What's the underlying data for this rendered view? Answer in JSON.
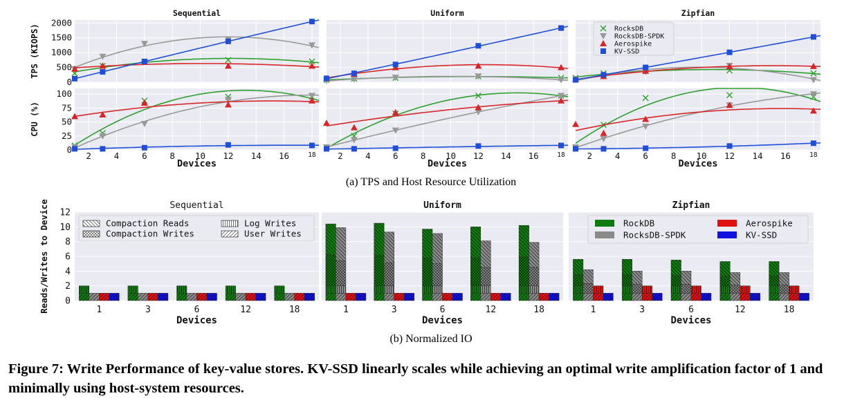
{
  "figure": {
    "subcaption_a": "(a)  TPS and Host Resource Utilization",
    "subcaption_b": "(b)  Normalized IO",
    "caption": "Figure 7: Write Performance of key-value stores. KV-SSD linearly scales while achieving an optimal write amplification factor of 1 and minimally using host-system resources."
  },
  "chart_data": [
    {
      "type": "scatter",
      "panel": "tps",
      "ylabel": "TPS (KIOPS)",
      "ylim": [
        0,
        2100
      ],
      "yticks": [
        0,
        500,
        1000,
        1500,
        2000
      ],
      "x": [
        1,
        3,
        6,
        12,
        18
      ],
      "xlim": [
        1,
        18.5
      ],
      "grid": true,
      "legend": {
        "placement": "top-left",
        "subplot": "Zipfian"
      },
      "titles": [
        "Sequential",
        "Uniform",
        "Zipfian"
      ],
      "series_names": [
        "RocksDB",
        "RocksDB-SPDK",
        "Aerospike",
        "KV-SSD"
      ],
      "colors": [
        "#2ca02c",
        "#999999",
        "#d62728",
        "#1f4fd8"
      ],
      "markers": [
        "x",
        "v",
        "^",
        "s"
      ],
      "subplots": [
        {
          "title": "Sequential",
          "series": [
            {
              "values": [
                300,
                550,
                700,
                750,
                700
              ]
            },
            {
              "values": [
                450,
                870,
                1300,
                1450,
                1250
              ]
            },
            {
              "values": [
                450,
                550,
                680,
                550,
                550
              ]
            },
            {
              "values": [
                120,
                350,
                700,
                1380,
                2050
              ]
            }
          ]
        },
        {
          "title": "Uniform",
          "series": [
            {
              "values": [
                80,
                120,
                150,
                200,
                150
              ]
            },
            {
              "values": [
                50,
                100,
                160,
                200,
                80
              ]
            },
            {
              "values": [
                130,
                280,
                500,
                550,
                500
              ]
            },
            {
              "values": [
                130,
                300,
                600,
                1230,
                1830
              ]
            }
          ]
        },
        {
          "title": "Zipfian",
          "series": [
            {
              "values": [
                150,
                300,
                380,
                400,
                300
              ]
            },
            {
              "values": [
                100,
                200,
                350,
                560,
                80
              ]
            },
            {
              "values": [
                100,
                200,
                380,
                530,
                540
              ]
            },
            {
              "values": [
                80,
                250,
                500,
                1010,
                1530
              ]
            }
          ]
        }
      ]
    },
    {
      "type": "scatter",
      "panel": "cpu",
      "ylabel": "CPU (%)",
      "xlabel": "Devices",
      "ylim": [
        0,
        110
      ],
      "yticks": [
        0,
        25,
        50,
        75,
        100
      ],
      "xticks": [
        2,
        4,
        6,
        8,
        10,
        12,
        14,
        16,
        18
      ],
      "x": [
        1,
        3,
        6,
        12,
        18
      ],
      "xlim": [
        1,
        18.5
      ],
      "grid": true,
      "series_names": [
        "RocksDB",
        "RocksDB-SPDK",
        "Aerospike",
        "KV-SSD"
      ],
      "subplots": [
        {
          "title": "Sequential",
          "series": [
            {
              "values": [
                8,
                30,
                88,
                95,
                95
              ]
            },
            {
              "values": [
                5,
                25,
                47,
                90,
                97
              ]
            },
            {
              "values": [
                60,
                63,
                84,
                81,
                88
              ]
            },
            {
              "values": [
                2,
                2,
                4,
                9,
                8
              ]
            }
          ]
        },
        {
          "title": "Uniform",
          "series": [
            {
              "values": [
                5,
                25,
                65,
                97,
                97
              ]
            },
            {
              "values": [
                5,
                18,
                35,
                68,
                97
              ]
            },
            {
              "values": [
                48,
                40,
                67,
                76,
                88
              ]
            },
            {
              "values": [
                2,
                2,
                3,
                7,
                8
              ]
            }
          ]
        },
        {
          "title": "Zipfian",
          "series": [
            {
              "values": [
                5,
                45,
                93,
                98,
                95
              ]
            },
            {
              "values": [
                5,
                20,
                42,
                80,
                100
              ]
            },
            {
              "values": [
                46,
                30,
                55,
                80,
                70
              ]
            },
            {
              "values": [
                2,
                2,
                3,
                7,
                12
              ]
            }
          ]
        }
      ]
    },
    {
      "type": "bar",
      "panel": "io",
      "ylabel": "Reads/Writes to Device",
      "xlabel": "Devices",
      "ylim": [
        0,
        12
      ],
      "yticks": [
        0,
        2,
        4,
        6,
        8,
        10,
        12
      ],
      "categories": [
        "1",
        "3",
        "6",
        "12",
        "18"
      ],
      "titles": [
        "Sequential",
        "Uniform",
        "Zipfian"
      ],
      "component_names": [
        "Compaction Reads",
        "Compaction Writes",
        "Log Writes",
        "User Writes"
      ],
      "store_names": [
        "RockDB",
        "RocksDB-SPDK",
        "Aerospike",
        "KV-SSD"
      ],
      "store_colors": [
        "#0f7a0f",
        "#8a8a8a",
        "#e01010",
        "#1010e0"
      ],
      "subplots": [
        {
          "title": "Sequential",
          "stores": [
            [
              [
                0,
                0,
                0,
                0,
                0
              ],
              [
                0,
                0,
                0,
                0,
                0
              ],
              [
                1,
                1,
                1,
                1,
                1
              ],
              [
                1,
                1,
                1,
                1,
                1
              ]
            ],
            [
              [
                0,
                0,
                0,
                0,
                0
              ],
              [
                0,
                0,
                0,
                0,
                0
              ],
              [
                0,
                0,
                0,
                0,
                0
              ],
              [
                1,
                1,
                1,
                1,
                1
              ]
            ],
            [
              [
                0,
                0,
                0,
                0,
                0
              ],
              [
                0,
                0,
                0,
                0,
                0
              ],
              [
                0,
                0,
                0,
                0,
                0
              ],
              [
                1,
                1,
                1,
                1,
                1
              ]
            ],
            [
              [
                0,
                0,
                0,
                0,
                0
              ],
              [
                0,
                0,
                0,
                0,
                0
              ],
              [
                0,
                0,
                0,
                0,
                0
              ],
              [
                1,
                1,
                1,
                1,
                1
              ]
            ]
          ]
        },
        {
          "title": "Uniform",
          "stores": [
            [
              [
                4.2,
                4.4,
                3.9,
                4.2,
                4.3
              ],
              [
                4.2,
                4.1,
                3.8,
                3.8,
                3.9
              ],
              [
                1,
                1,
                1,
                1,
                1
              ],
              [
                1,
                1,
                1,
                1,
                1
              ]
            ],
            [
              [
                4.5,
                4.2,
                4.1,
                3.6,
                3.4
              ],
              [
                3.4,
                3.1,
                3.0,
                2.5,
                2.5
              ],
              [
                1,
                1,
                1,
                1,
                1
              ],
              [
                1,
                1,
                1,
                1,
                1
              ]
            ],
            [
              [
                0,
                0,
                0,
                0,
                0
              ],
              [
                0,
                0,
                0,
                0,
                0
              ],
              [
                0,
                0,
                0,
                0,
                0
              ],
              [
                1,
                1,
                1,
                1,
                1
              ]
            ],
            [
              [
                0,
                0,
                0,
                0,
                0
              ],
              [
                0,
                0,
                0,
                0,
                0
              ],
              [
                0,
                0,
                0,
                0,
                0
              ],
              [
                1,
                1,
                1,
                1,
                1
              ]
            ]
          ]
        },
        {
          "title": "Zipfian",
          "stores": [
            [
              [
                2.1,
                2.1,
                2.1,
                2.0,
                2.0
              ],
              [
                1.5,
                1.5,
                1.4,
                1.3,
                1.3
              ],
              [
                1,
                1,
                1,
                1,
                1
              ],
              [
                1,
                1,
                1,
                1,
                1
              ]
            ],
            [
              [
                1.9,
                1.8,
                1.8,
                1.7,
                1.7
              ],
              [
                1.3,
                1.2,
                1.2,
                1.1,
                1.1
              ],
              [
                0,
                0,
                0,
                0,
                0
              ],
              [
                1,
                1,
                1,
                1,
                1
              ]
            ],
            [
              [
                0,
                0,
                0,
                0,
                0
              ],
              [
                0,
                0,
                0,
                0,
                0
              ],
              [
                1,
                1,
                1,
                1,
                1
              ],
              [
                1,
                1,
                1,
                1,
                1
              ]
            ],
            [
              [
                0,
                0,
                0,
                0,
                0
              ],
              [
                0,
                0,
                0,
                0,
                0
              ],
              [
                0,
                0,
                0,
                0,
                0
              ],
              [
                1,
                1,
                1,
                1,
                1
              ]
            ]
          ]
        }
      ]
    }
  ]
}
